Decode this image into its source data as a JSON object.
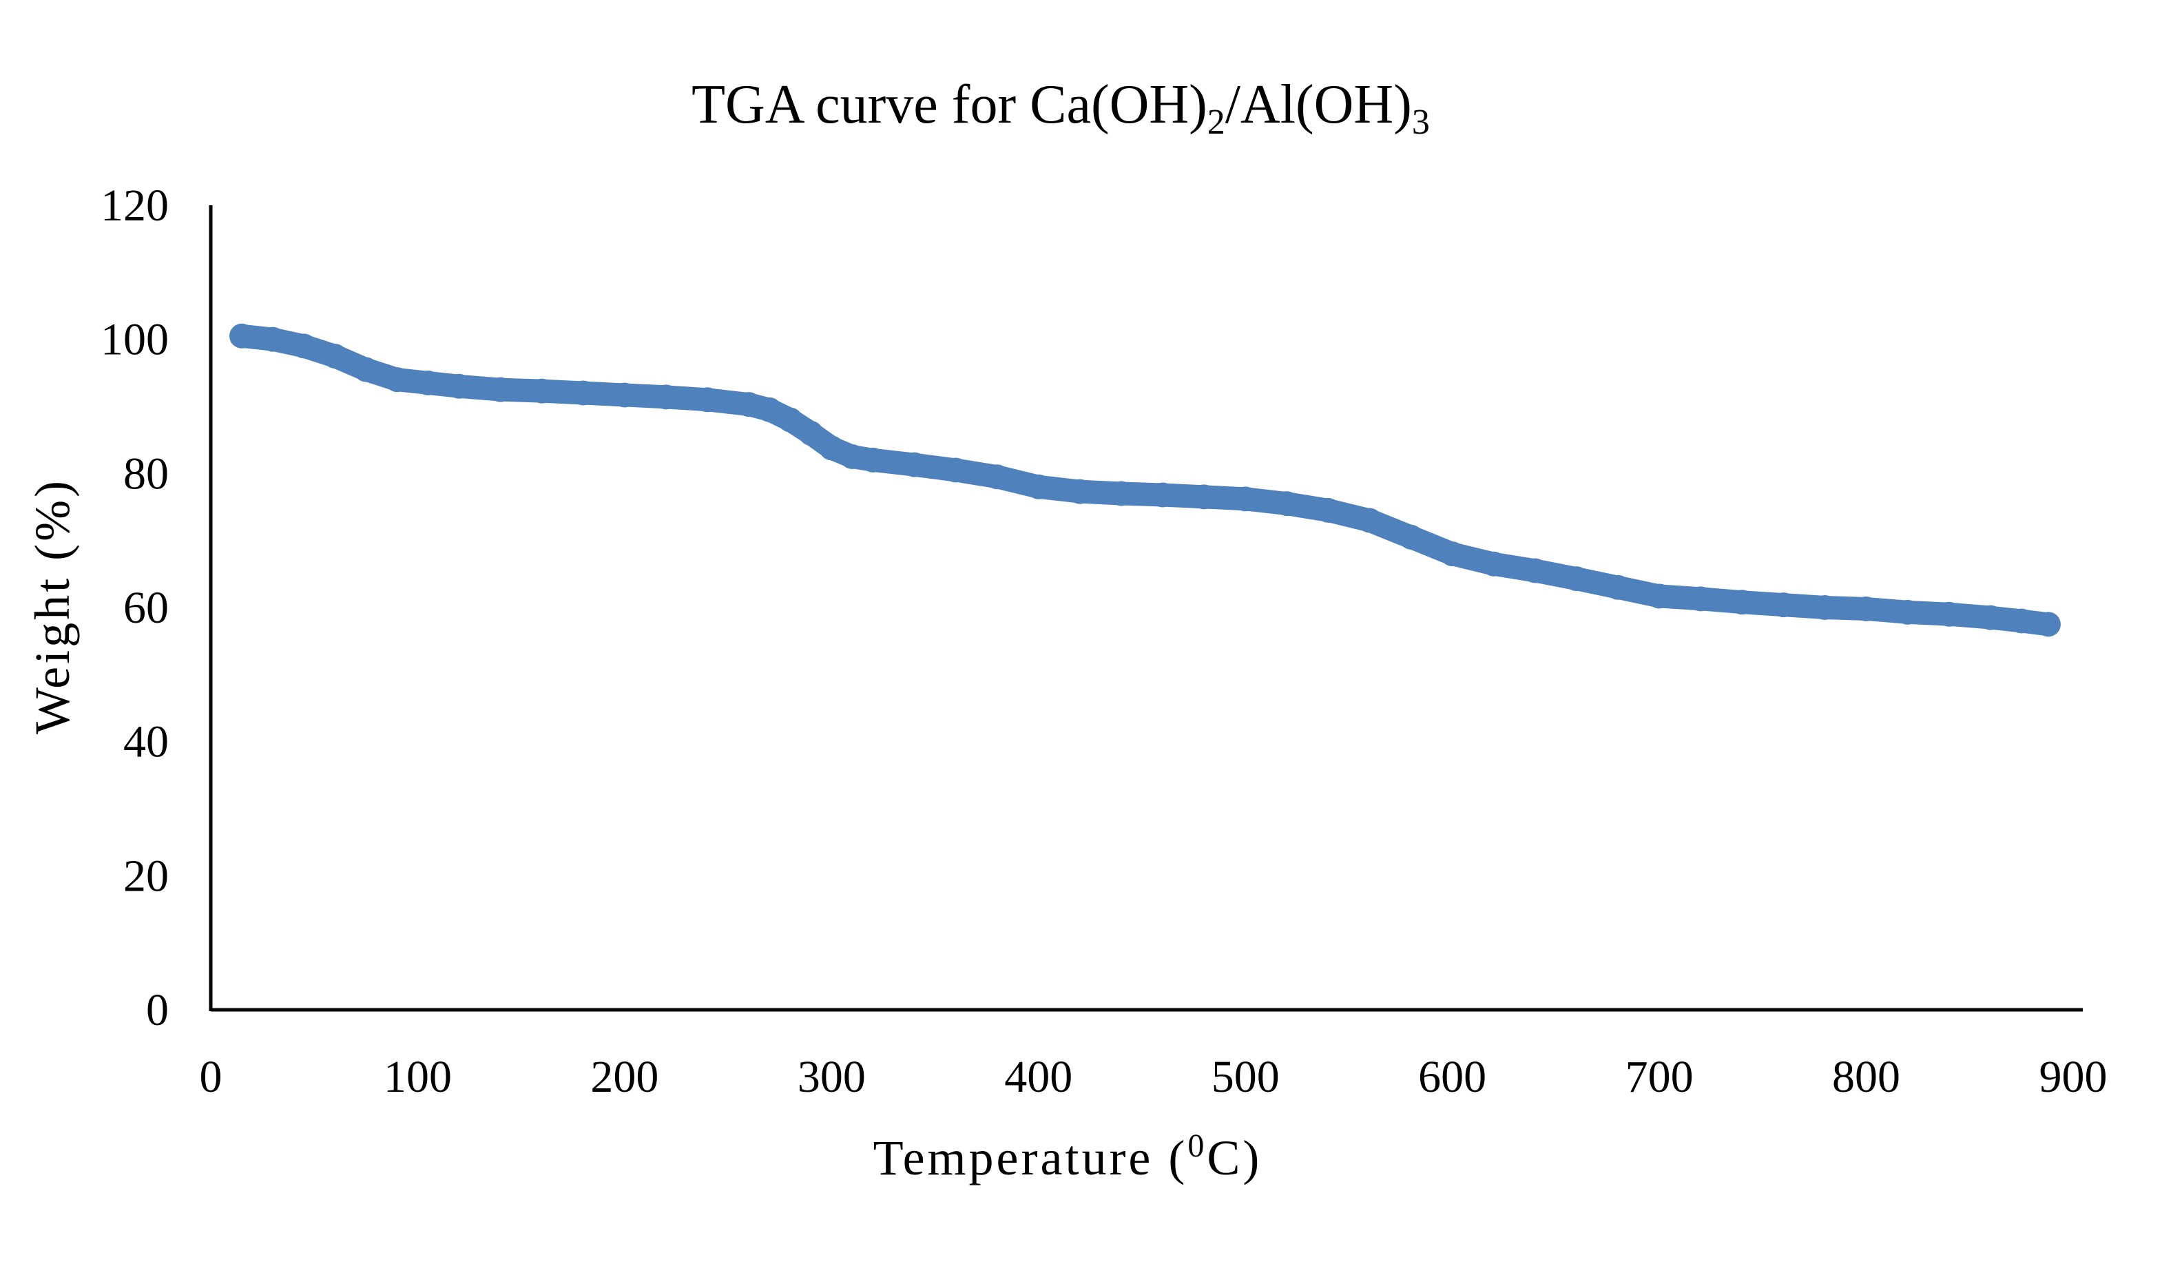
{
  "chart_data": {
    "type": "scatter",
    "title": "TGA curve for Ca(OH)",
    "title_sub_1": "2",
    "title_mid": "/Al(OH)",
    "title_sub_2": "3",
    "xlabel": "Temperature  (",
    "xlabel_sup": "0",
    "xlabel_end": "C)",
    "ylabel": "Weight  (%)",
    "xlim": [
      0,
      900
    ],
    "ylim": [
      0,
      120
    ],
    "x_ticks": [
      "0",
      "100",
      "200",
      "300",
      "400",
      "500",
      "600",
      "700",
      "800",
      "900"
    ],
    "y_ticks": [
      "0",
      "20",
      "40",
      "60",
      "80",
      "100",
      "120"
    ],
    "grid": false,
    "legend": "none",
    "series_color": "#4f81bd",
    "series": [
      {
        "name": "Ca(OH)2/Al(OH)3",
        "x": [
          15,
          30,
          45,
          60,
          75,
          90,
          105,
          120,
          140,
          160,
          180,
          200,
          220,
          240,
          260,
          270,
          280,
          290,
          300,
          310,
          320,
          340,
          360,
          380,
          400,
          420,
          440,
          460,
          480,
          500,
          520,
          540,
          560,
          580,
          600,
          620,
          640,
          660,
          680,
          700,
          720,
          740,
          760,
          780,
          800,
          820,
          840,
          860,
          875,
          888
        ],
        "y": [
          100.5,
          100,
          99,
          97.5,
          95.5,
          94,
          93.5,
          93,
          92.5,
          92.3,
          92,
          91.7,
          91.4,
          91,
          90.3,
          89.5,
          88,
          86,
          83.8,
          82.5,
          82,
          81.3,
          80.5,
          79.5,
          78,
          77.3,
          77,
          76.8,
          76.5,
          76.2,
          75.5,
          74.5,
          73,
          70.5,
          68,
          66.5,
          65.5,
          64.3,
          63,
          61.7,
          61.3,
          60.8,
          60.4,
          60,
          59.8,
          59.3,
          59,
          58.5,
          58,
          57.5
        ]
      }
    ]
  }
}
